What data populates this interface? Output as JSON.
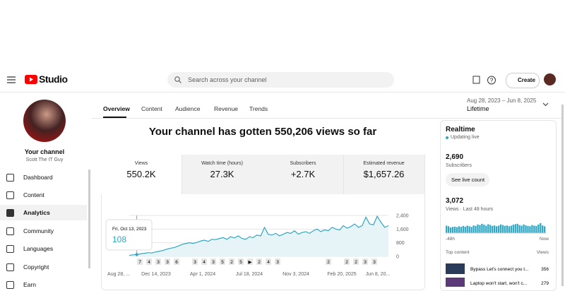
{
  "header": {
    "logo": "Studio",
    "search_placeholder": "Search across your channel",
    "create": "Create"
  },
  "sidebar": {
    "channel_title": "Your channel",
    "channel_name": "Scott The IT Guy",
    "nav": [
      "Dashboard",
      "Content",
      "Analytics",
      "Community",
      "Languages",
      "Copyright",
      "Earn"
    ],
    "active": 2
  },
  "tabs": {
    "items": [
      "Overview",
      "Content",
      "Audience",
      "Revenue",
      "Trends"
    ],
    "active": 0
  },
  "date_range": {
    "range": "Aug 28, 2023 – Jun 8, 2025",
    "label": "Lifetime"
  },
  "headline": "Your channel has gotten 550,206 views so far",
  "metrics": [
    {
      "label": "Views",
      "value": "550.2K"
    },
    {
      "label": "Watch time (hours)",
      "value": "27.3K"
    },
    {
      "label": "Subscribers",
      "value": "+2.7K"
    },
    {
      "label": "Estimated revenue",
      "value": "$1,657.26"
    }
  ],
  "chart_data": {
    "type": "line",
    "color": "#2fa7c4",
    "x_labels": [
      "Aug 28, ...",
      "Dec 14, 2023",
      "Apr 1, 2024",
      "Jul 18, 2024",
      "Nov 3, 2024",
      "Feb 20, 2025",
      "Jun 8, 20..."
    ],
    "values": [
      60,
      90,
      108,
      150,
      180,
      220,
      200,
      260,
      300,
      350,
      420,
      480,
      520,
      600,
      700,
      750,
      800,
      760,
      820,
      900,
      950,
      880,
      1000,
      980,
      1050,
      1100,
      1000,
      1150,
      1080,
      1200,
      1050,
      1000,
      1150,
      1100,
      1250,
      1200,
      1700,
      1300,
      1250,
      1350,
      1200,
      1300,
      1400,
      1350,
      1500,
      1300,
      1400,
      1450,
      1350,
      1500,
      1600,
      1450,
      1550,
      1500,
      1700,
      1600,
      1550,
      1800,
      1650,
      1750,
      1900,
      1700,
      1800,
      2300,
      1900,
      1850,
      2350,
      2000,
      1700,
      1800
    ],
    "ylim": [
      0,
      2400
    ],
    "yticks": [
      0,
      {
        "value": 800,
        "label": "800"
      },
      {
        "value": 1600,
        "label": "1,600"
      },
      {
        "value": 2400,
        "label": "2,400"
      }
    ],
    "markers": [
      "7",
      "4",
      "3",
      "3",
      "6",
      "3",
      "4",
      "3",
      "5",
      "2",
      "5",
      "▶",
      "2",
      "4",
      "3",
      "2",
      "2",
      "2",
      "3",
      "3"
    ],
    "tooltip": {
      "date": "Fri, Oct 13, 2023",
      "value": 108
    }
  },
  "realtime": {
    "title": "Realtime",
    "status": "Updating live",
    "subscribers": "2,690",
    "subscribers_label": "Subscribers",
    "button": "See live count",
    "views": "3,072",
    "views_label": "Views · Last 48 hours",
    "bars": {
      "type": "bar",
      "color": "#2fa7c4",
      "values": [
        60,
        55,
        45,
        50,
        52,
        48,
        55,
        50,
        58,
        52,
        60,
        55,
        50,
        62,
        58,
        70,
        65,
        75,
        68,
        60,
        72,
        66,
        58,
        62,
        55,
        60,
        70,
        65,
        58,
        62,
        55,
        60,
        68,
        72,
        75,
        65,
        60,
        70,
        62,
        58,
        55,
        65,
        60,
        58,
        70,
        80,
        62,
        55
      ]
    },
    "axis_start": "-48h",
    "axis_end": "Now",
    "top_content": "Top content",
    "views_header": "Views",
    "items": [
      {
        "title": "Bypass Let's connect you t...",
        "views": "356"
      },
      {
        "title": "Laptop won't start, won't c...",
        "views": "279"
      }
    ]
  }
}
